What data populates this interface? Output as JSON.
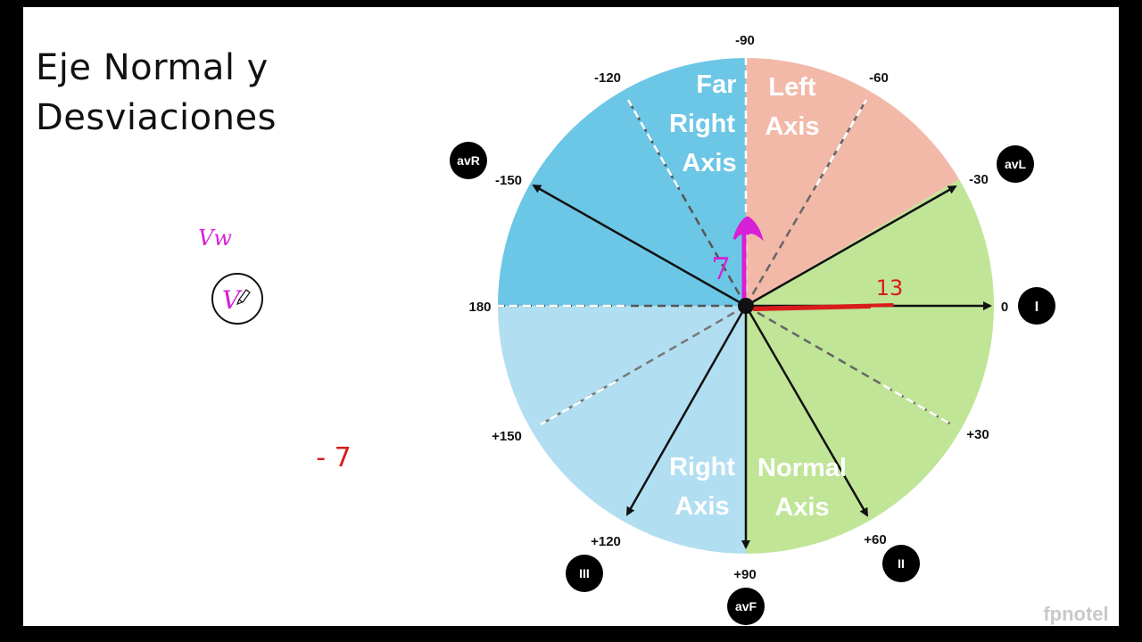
{
  "title": {
    "line1": "Eje Normal y",
    "line2": "Desviaciones"
  },
  "regions": {
    "far_right": [
      "Far",
      "Right",
      "Axis"
    ],
    "left": [
      "Left",
      "Axis"
    ],
    "right": [
      "Right",
      "Axis"
    ],
    "normal": [
      "Normal",
      "Axis"
    ]
  },
  "degree_labels": {
    "m90": "-90",
    "m120": "-120",
    "m60": "-60",
    "m150": "-150",
    "m30": "-30",
    "d180": "180",
    "d0": "0",
    "p150": "+150",
    "p30": "+30",
    "p120": "+120",
    "p60": "+60",
    "p90": "+90"
  },
  "leads": {
    "avR": "avR",
    "avL": "avL",
    "I": "I",
    "III": "III",
    "II": "II",
    "avF": "avF"
  },
  "annotations": {
    "handwritten_7": "7",
    "handwritten_13": "13",
    "handwritten_minus7": "- 7",
    "handwritten_vw": "Vw",
    "circled_v": "V"
  },
  "watermark": "fpnotel",
  "colors": {
    "far_right": "#6cc6e6",
    "left": "#f2b9a9",
    "normal": "#c0e597",
    "right": "#b2def1",
    "magenta": "#d61fd6",
    "red": "#d81b1b"
  }
}
